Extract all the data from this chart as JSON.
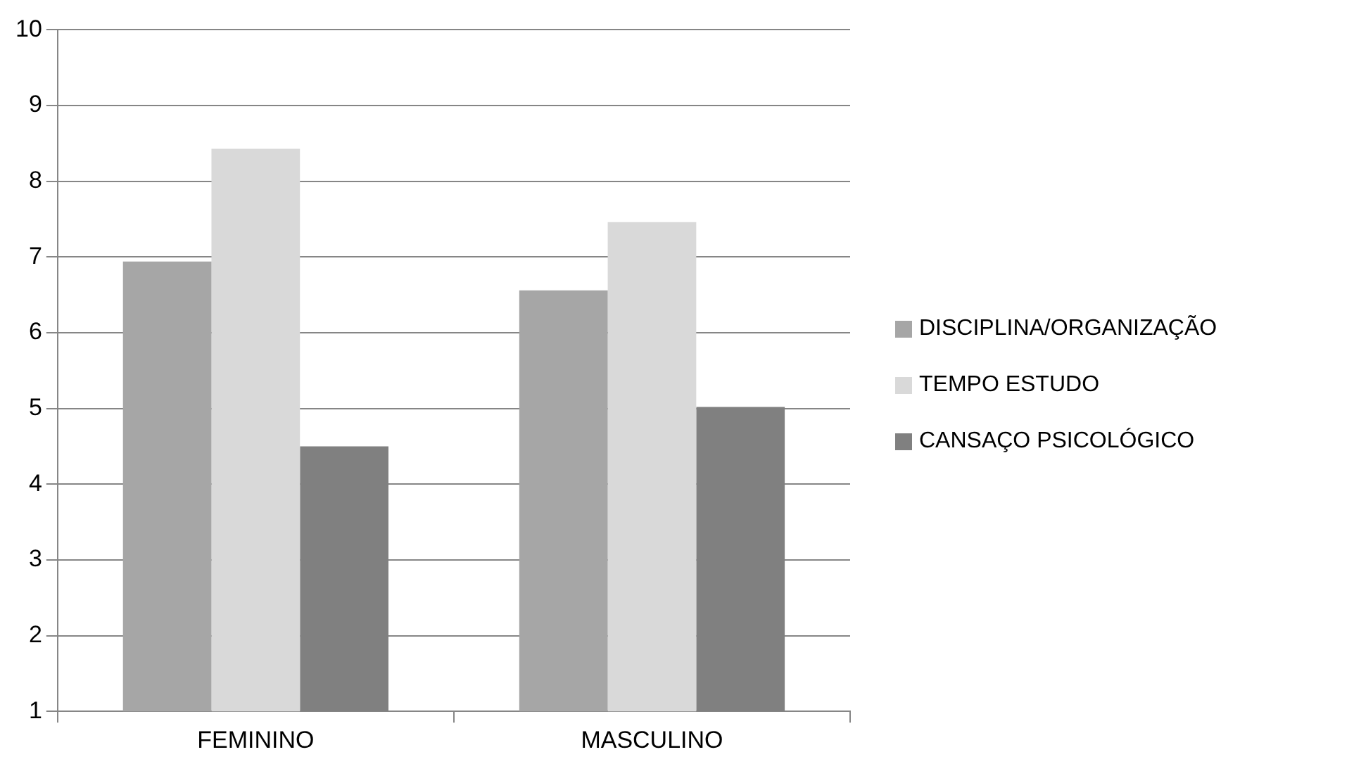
{
  "chart_data": {
    "type": "bar",
    "categories": [
      "FEMININO",
      "MASCULINO"
    ],
    "series": [
      {
        "name": "DISCIPLINA/ORGANIZAÇÃO",
        "color": "#a6a6a6",
        "values": [
          6.94,
          6.56
        ]
      },
      {
        "name": "TEMPO ESTUDO",
        "color": "#d9d9d9",
        "values": [
          8.43,
          7.46
        ]
      },
      {
        "name": "CANSAÇO PSICOLÓGICO",
        "color": "#808080",
        "values": [
          4.5,
          5.02
        ]
      }
    ],
    "ylim": [
      1,
      10
    ],
    "yticks": [
      1,
      2,
      3,
      4,
      5,
      6,
      7,
      8,
      9,
      10
    ],
    "grid": "y",
    "legend": "right"
  }
}
